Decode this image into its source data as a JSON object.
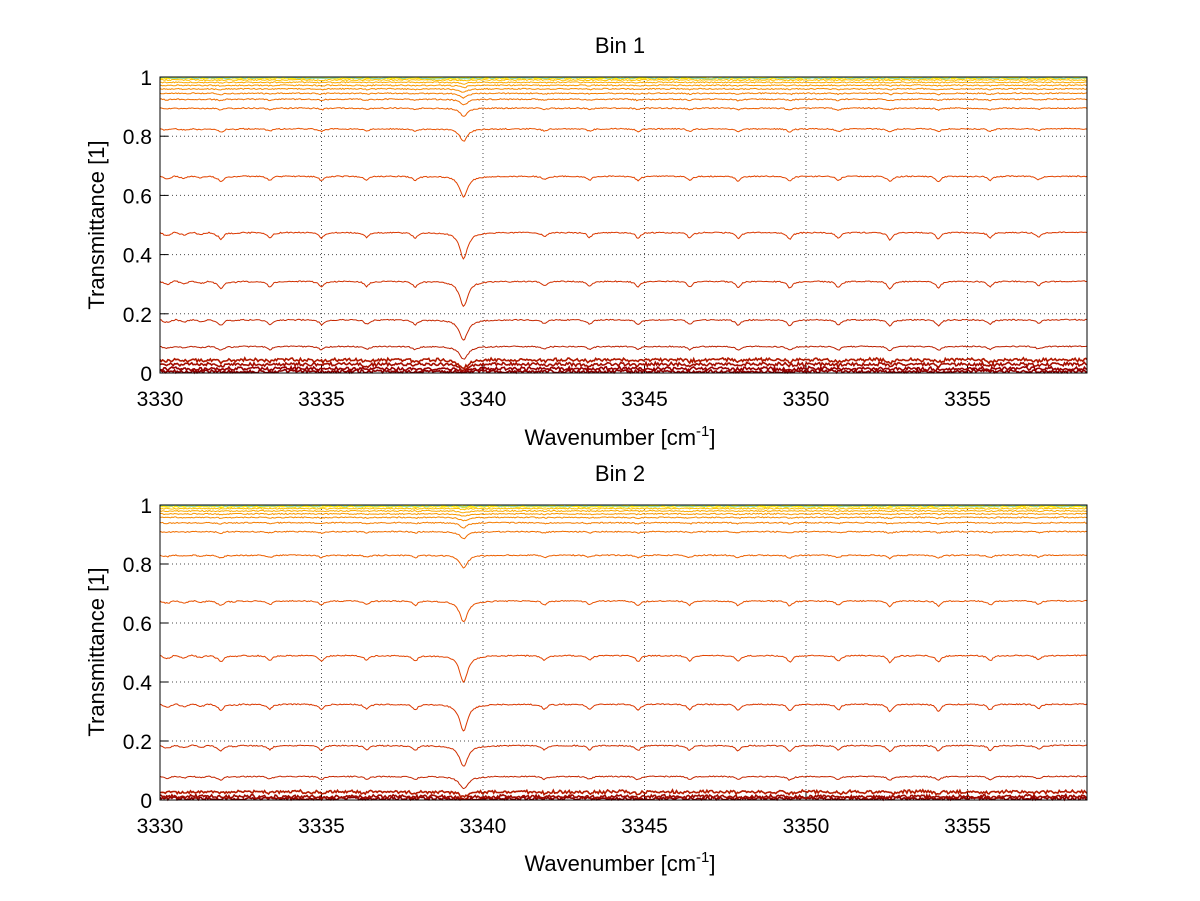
{
  "chart_data": [
    {
      "type": "line",
      "title": "Bin 1",
      "xlabel_main": "Wavenumber [cm",
      "xlabel_sup": "-1",
      "xlabel_close": "]",
      "ylabel": "Transmittance [1]",
      "xlim": [
        3330,
        3358.7
      ],
      "ylim": [
        0,
        1
      ],
      "grid": true,
      "xticks": [
        3330,
        3335,
        3340,
        3345,
        3350,
        3355
      ],
      "yticks": [
        0,
        0.2,
        0.4,
        0.6,
        0.8,
        1
      ],
      "xtick_labels": [
        "3330",
        "3335",
        "3340",
        "3345",
        "3350",
        "3355"
      ],
      "ytick_labels": [
        "0",
        "0.2",
        "0.4",
        "0.6",
        "0.8",
        "1"
      ],
      "series_baselines": [
        0.005,
        0.015,
        0.03,
        0.045,
        0.09,
        0.18,
        0.31,
        0.475,
        0.665,
        0.825,
        0.895,
        0.925,
        0.945,
        0.96,
        0.972,
        0.982,
        0.99,
        0.995,
        0.998
      ],
      "series_colors": [
        "#8b0000",
        "#990000",
        "#a50d00",
        "#b01800",
        "#bb2000",
        "#c62800",
        "#d03000",
        "#da3800",
        "#e24400",
        "#e85200",
        "#ec6000",
        "#f06e00",
        "#f47c00",
        "#f68a00",
        "#f89800",
        "#faa800",
        "#fcc000",
        "#fede00",
        "#ffff00"
      ],
      "absorption_lines": [
        {
          "x": 3331.9,
          "depth": 0.5
        },
        {
          "x": 3333.4,
          "depth": 0.45
        },
        {
          "x": 3335.0,
          "depth": 0.45
        },
        {
          "x": 3336.4,
          "depth": 0.4
        },
        {
          "x": 3337.9,
          "depth": 0.45
        },
        {
          "x": 3339.4,
          "depth": 2.3
        },
        {
          "x": 3341.9,
          "depth": 0.35
        },
        {
          "x": 3343.3,
          "depth": 0.4
        },
        {
          "x": 3344.8,
          "depth": 0.45
        },
        {
          "x": 3346.4,
          "depth": 0.45
        },
        {
          "x": 3347.9,
          "depth": 0.5
        },
        {
          "x": 3349.5,
          "depth": 0.55
        },
        {
          "x": 3351.0,
          "depth": 0.5
        },
        {
          "x": 3352.6,
          "depth": 0.6
        },
        {
          "x": 3354.1,
          "depth": 0.55
        },
        {
          "x": 3355.7,
          "depth": 0.45
        },
        {
          "x": 3357.2,
          "depth": 0.35
        }
      ]
    },
    {
      "type": "line",
      "title": "Bin 2",
      "xlabel_main": "Wavenumber [cm",
      "xlabel_sup": "-1",
      "xlabel_close": "]",
      "ylabel": "Transmittance [1]",
      "xlim": [
        3330,
        3358.7
      ],
      "ylim": [
        0,
        1
      ],
      "grid": true,
      "xticks": [
        3330,
        3335,
        3340,
        3345,
        3350,
        3355
      ],
      "yticks": [
        0,
        0.2,
        0.4,
        0.6,
        0.8,
        1
      ],
      "xtick_labels": [
        "3330",
        "3335",
        "3340",
        "3345",
        "3350",
        "3355"
      ],
      "ytick_labels": [
        "0",
        "0.2",
        "0.4",
        "0.6",
        "0.8",
        "1"
      ],
      "series_baselines": [
        0.005,
        0.012,
        0.028,
        0.08,
        0.185,
        0.325,
        0.49,
        0.675,
        0.83,
        0.91,
        0.94,
        0.958,
        0.97,
        0.98,
        0.988,
        0.994,
        0.997,
        0.999
      ],
      "series_colors": [
        "#8b0000",
        "#a00a00",
        "#b51a00",
        "#c42600",
        "#d03000",
        "#da3800",
        "#e24400",
        "#e85200",
        "#ec6000",
        "#f06e00",
        "#f47c00",
        "#f68a00",
        "#f89800",
        "#faa800",
        "#fcc000",
        "#fede00",
        "#ffef00",
        "#ffff00"
      ],
      "absorption_lines": [
        {
          "x": 3331.9,
          "depth": 0.45
        },
        {
          "x": 3333.4,
          "depth": 0.4
        },
        {
          "x": 3335.0,
          "depth": 0.45
        },
        {
          "x": 3336.4,
          "depth": 0.4
        },
        {
          "x": 3337.9,
          "depth": 0.45
        },
        {
          "x": 3339.4,
          "depth": 2.4
        },
        {
          "x": 3341.9,
          "depth": 0.4
        },
        {
          "x": 3343.3,
          "depth": 0.4
        },
        {
          "x": 3344.8,
          "depth": 0.5
        },
        {
          "x": 3346.4,
          "depth": 0.45
        },
        {
          "x": 3347.9,
          "depth": 0.5
        },
        {
          "x": 3349.5,
          "depth": 0.55
        },
        {
          "x": 3351.0,
          "depth": 0.45
        },
        {
          "x": 3352.6,
          "depth": 0.6
        },
        {
          "x": 3354.1,
          "depth": 0.55
        },
        {
          "x": 3355.7,
          "depth": 0.45
        },
        {
          "x": 3357.2,
          "depth": 0.35
        }
      ]
    }
  ]
}
